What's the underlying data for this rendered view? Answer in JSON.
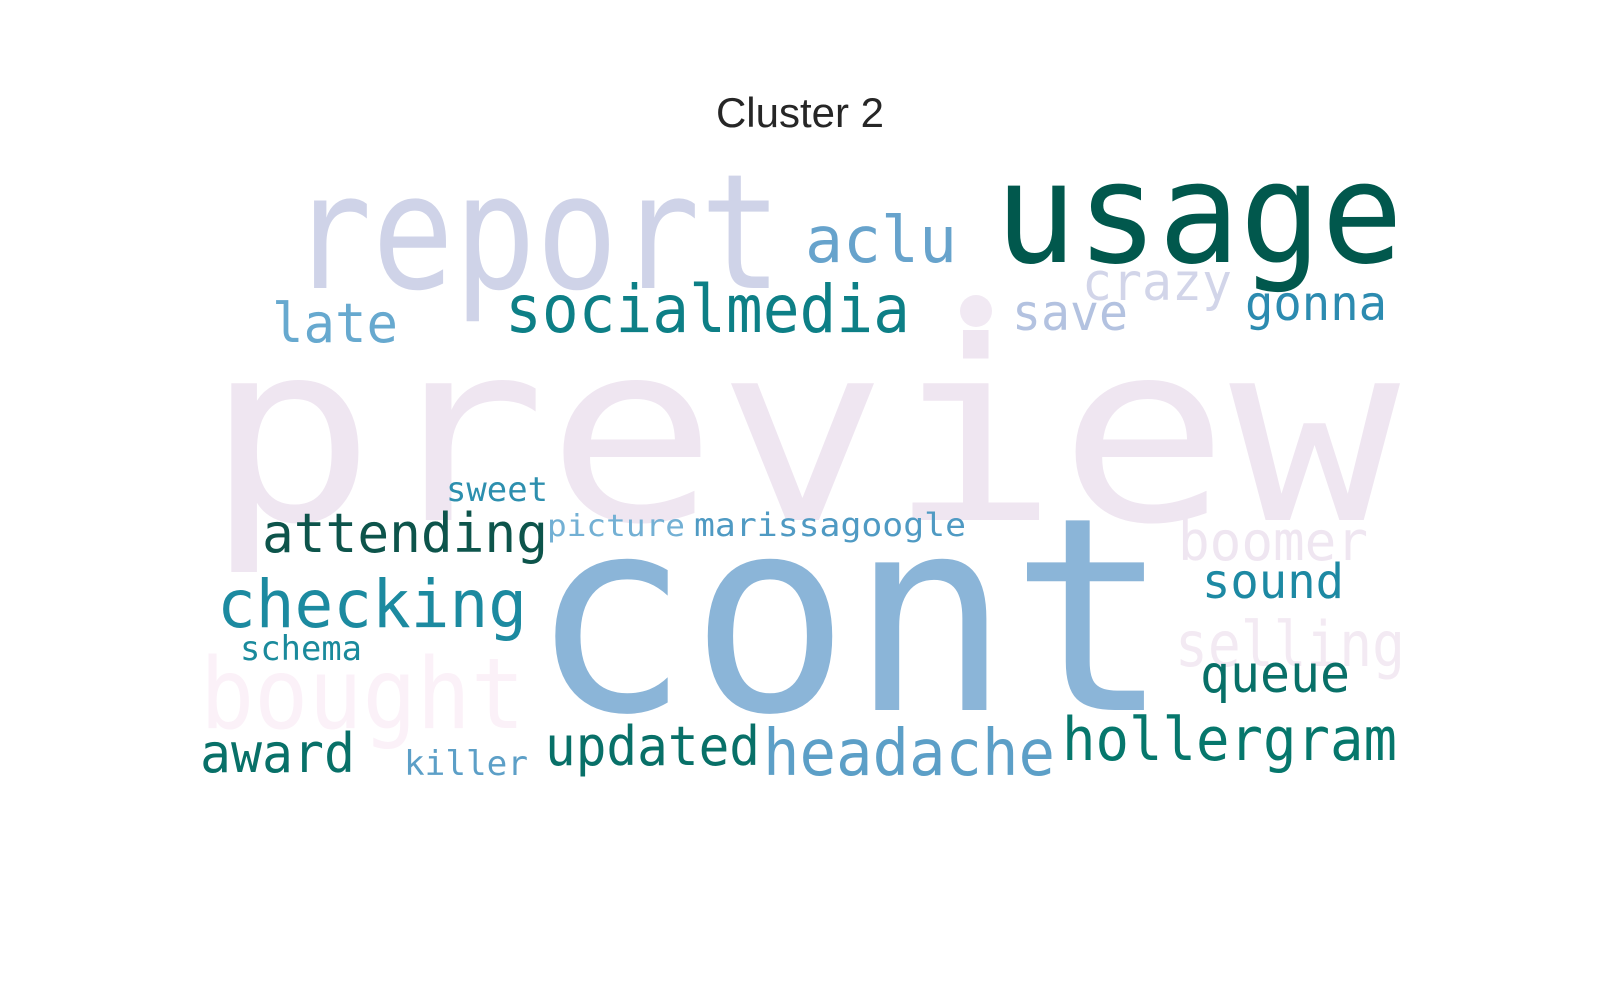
{
  "title": "Cluster 2",
  "words": [
    {
      "text": "preview",
      "color": "#efe6f1"
    },
    {
      "text": "bought",
      "color": "#fbf1f8"
    },
    {
      "text": "selling",
      "color": "#f3eaf3"
    },
    {
      "text": "boomer",
      "color": "#efe6f1"
    },
    {
      "text": "report",
      "color": "#cfd3e8"
    },
    {
      "text": "crazy",
      "color": "#d2d5e9"
    },
    {
      "text": "save",
      "color": "#b3c2e0"
    },
    {
      "text": "cont",
      "color": "#8bb5d8"
    },
    {
      "text": "usage",
      "color": "#01584d"
    },
    {
      "text": "aclu",
      "color": "#67a3cc"
    },
    {
      "text": "socialmedia",
      "color": "#0d7f86"
    },
    {
      "text": "gonna",
      "color": "#2c8bb0"
    },
    {
      "text": "late",
      "color": "#67a9cf"
    },
    {
      "text": "sweet",
      "color": "#2d8fae"
    },
    {
      "text": "picture",
      "color": "#73b0d4"
    },
    {
      "text": "marissagoogle",
      "color": "#4f9ac3"
    },
    {
      "text": "attending",
      "color": "#0d544b"
    },
    {
      "text": "checking",
      "color": "#1c8aa0"
    },
    {
      "text": "schema",
      "color": "#1a8a9c"
    },
    {
      "text": "sound",
      "color": "#1d89a3"
    },
    {
      "text": "queue",
      "color": "#087068"
    },
    {
      "text": "award",
      "color": "#087068"
    },
    {
      "text": "killer",
      "color": "#5c9fc7"
    },
    {
      "text": "updated",
      "color": "#087068"
    },
    {
      "text": "headache",
      "color": "#5c9fc7"
    },
    {
      "text": "hollergram",
      "color": "#06776c"
    }
  ]
}
